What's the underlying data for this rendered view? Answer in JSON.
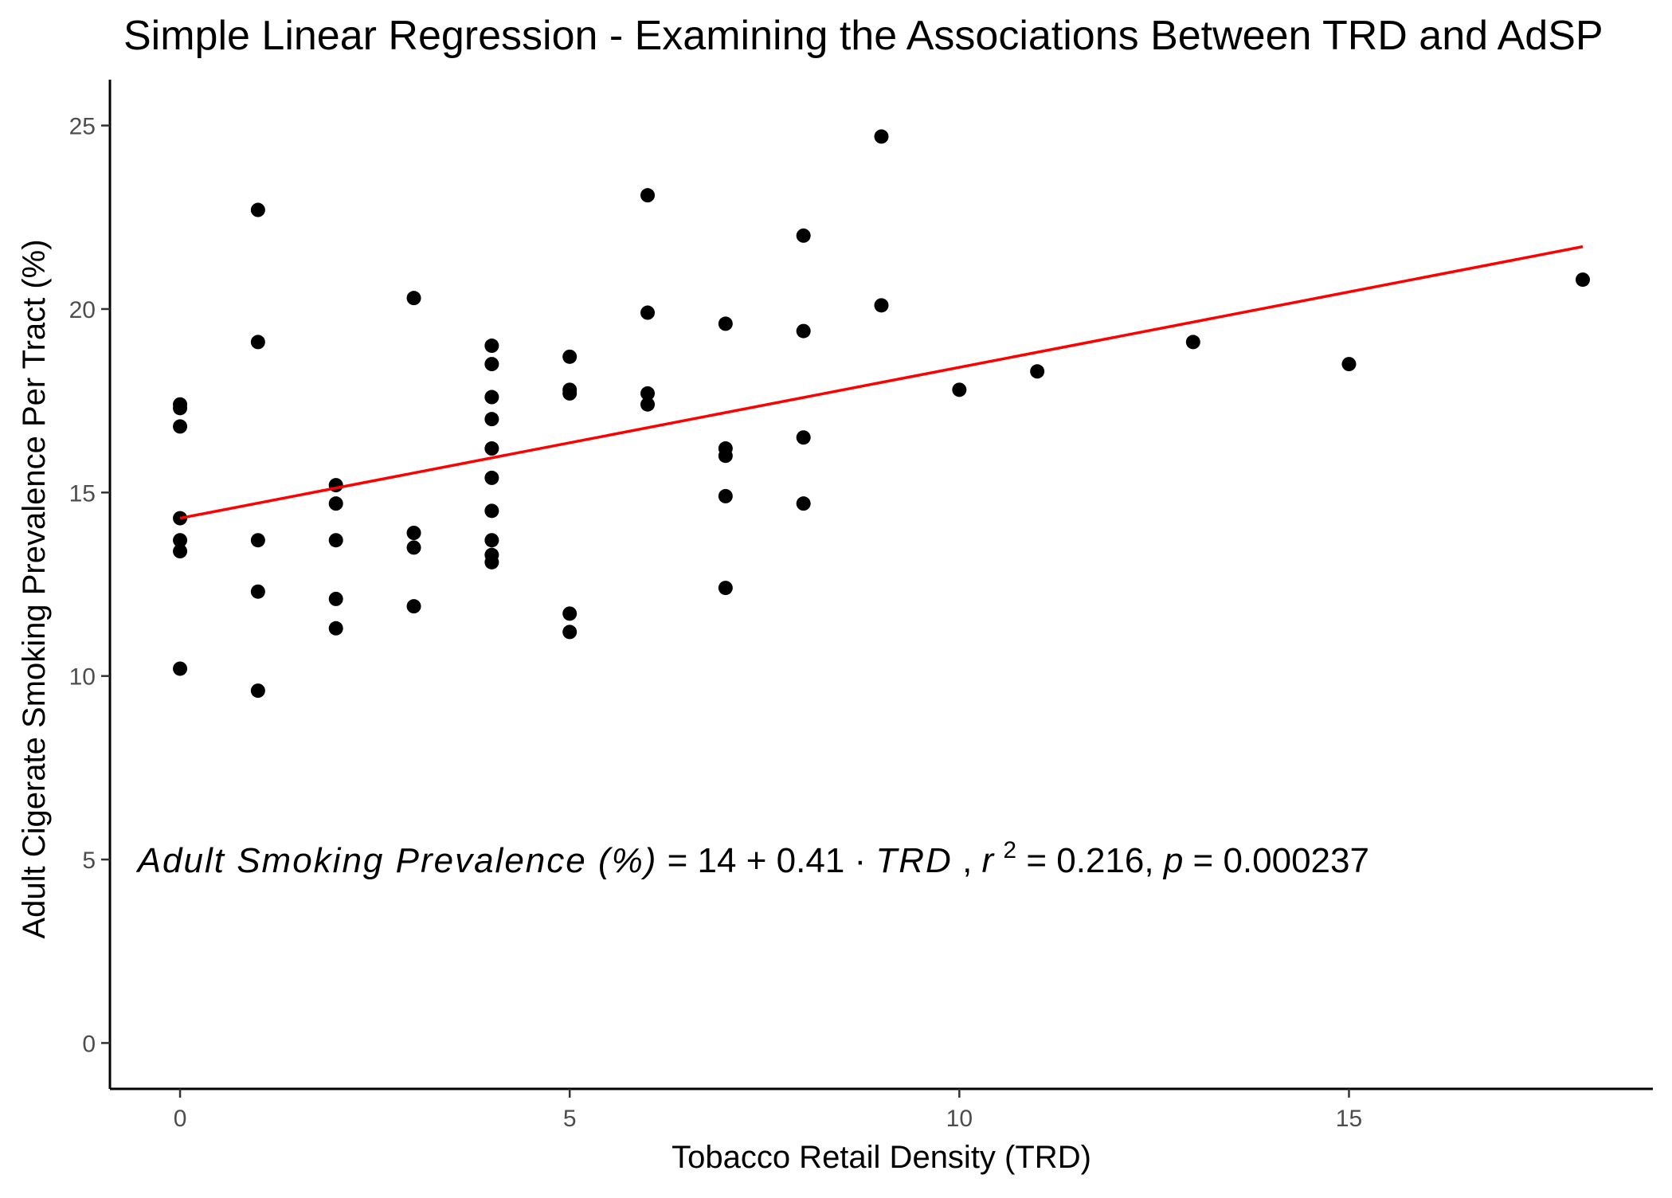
{
  "chart_data": {
    "type": "scatter",
    "title": "Simple Linear Regression - Examining the Associations Between TRD and AdSP",
    "xlabel": "Tobacco Retail Density (TRD)",
    "ylabel": "Adult Cigerate Smoking Prevalence Per Tract (%)",
    "xlim": [
      -0.9,
      18.9
    ],
    "ylim": [
      -1.25,
      26.25
    ],
    "x_ticks": [
      0,
      5,
      10,
      15
    ],
    "y_ticks": [
      0,
      5,
      10,
      15,
      20,
      25
    ],
    "x_tick_labels": [
      "0",
      "5",
      "10",
      "15"
    ],
    "y_tick_labels": [
      "0",
      "5",
      "10",
      "15",
      "20",
      "25"
    ],
    "grid": false,
    "legend": "none",
    "point_color": "#000000",
    "line_color": "#ff0000",
    "points": [
      {
        "x": 0,
        "y": 17.4
      },
      {
        "x": 0,
        "y": 17.3
      },
      {
        "x": 0,
        "y": 16.8
      },
      {
        "x": 0,
        "y": 14.3
      },
      {
        "x": 0,
        "y": 13.7
      },
      {
        "x": 0,
        "y": 13.4
      },
      {
        "x": 0,
        "y": 10.2
      },
      {
        "x": 1,
        "y": 22.7
      },
      {
        "x": 1,
        "y": 19.1
      },
      {
        "x": 1,
        "y": 13.7
      },
      {
        "x": 1,
        "y": 12.3
      },
      {
        "x": 1,
        "y": 9.6
      },
      {
        "x": 2,
        "y": 15.2
      },
      {
        "x": 2,
        "y": 14.7
      },
      {
        "x": 2,
        "y": 13.7
      },
      {
        "x": 2,
        "y": 12.1
      },
      {
        "x": 2,
        "y": 11.3
      },
      {
        "x": 3,
        "y": 20.3
      },
      {
        "x": 3,
        "y": 13.9
      },
      {
        "x": 3,
        "y": 13.5
      },
      {
        "x": 3,
        "y": 11.9
      },
      {
        "x": 4,
        "y": 19.0
      },
      {
        "x": 4,
        "y": 18.5
      },
      {
        "x": 4,
        "y": 17.6
      },
      {
        "x": 4,
        "y": 17.0
      },
      {
        "x": 4,
        "y": 16.2
      },
      {
        "x": 4,
        "y": 15.4
      },
      {
        "x": 4,
        "y": 14.5
      },
      {
        "x": 4,
        "y": 13.7
      },
      {
        "x": 4,
        "y": 13.3
      },
      {
        "x": 4,
        "y": 13.1
      },
      {
        "x": 5,
        "y": 18.7
      },
      {
        "x": 5,
        "y": 17.8
      },
      {
        "x": 5,
        "y": 17.7
      },
      {
        "x": 5,
        "y": 11.7
      },
      {
        "x": 5,
        "y": 11.2
      },
      {
        "x": 6,
        "y": 23.1
      },
      {
        "x": 6,
        "y": 19.9
      },
      {
        "x": 6,
        "y": 17.7
      },
      {
        "x": 6,
        "y": 17.4
      },
      {
        "x": 7,
        "y": 19.6
      },
      {
        "x": 7,
        "y": 16.2
      },
      {
        "x": 7,
        "y": 16.0
      },
      {
        "x": 7,
        "y": 14.9
      },
      {
        "x": 7,
        "y": 12.4
      },
      {
        "x": 8,
        "y": 22.0
      },
      {
        "x": 8,
        "y": 19.4
      },
      {
        "x": 8,
        "y": 16.5
      },
      {
        "x": 8,
        "y": 14.7
      },
      {
        "x": 9,
        "y": 24.7
      },
      {
        "x": 9,
        "y": 20.1
      },
      {
        "x": 10,
        "y": 17.8
      },
      {
        "x": 11,
        "y": 18.3
      },
      {
        "x": 13,
        "y": 19.1
      },
      {
        "x": 15,
        "y": 18.5
      },
      {
        "x": 18,
        "y": 20.8
      }
    ],
    "fit_line": {
      "x": [
        0,
        18
      ],
      "y": [
        14.3,
        21.7
      ]
    },
    "annotation": {
      "lhs": "Adult Smoking Prevalence (%)",
      "eq1": " = 14 + 0.41 · ",
      "var": "TRD",
      "sep1": ",  ",
      "r": "r",
      "r_exp": "2",
      "eq2": " = 0.216,  ",
      "p": "p",
      "eq3": " = 0.000237",
      "x": -0.3,
      "y": 5
    }
  }
}
